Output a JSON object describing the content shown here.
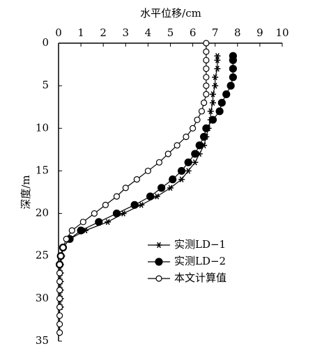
{
  "chart_data": {
    "type": "line",
    "x_label": "水平位移/cm",
    "y_label": "深度/m",
    "xlim": [
      0,
      10
    ],
    "xticks": [
      0,
      1,
      2,
      3,
      4,
      5,
      6,
      7,
      8,
      9,
      10
    ],
    "ylim": [
      0,
      35
    ],
    "yticks": [
      0,
      5,
      10,
      15,
      20,
      25,
      30,
      35
    ],
    "y_inverted": true,
    "x_axis_top": true,
    "series": [
      {
        "name": "实测LD−1",
        "color": "#000000",
        "marker": "star",
        "depth": [
          1.5,
          2,
          3,
          4,
          5,
          6,
          7,
          8,
          9,
          10,
          11,
          12,
          13,
          14,
          15,
          16,
          17,
          18,
          19,
          20,
          21,
          22,
          23,
          24,
          25,
          26,
          27,
          28,
          29,
          30,
          31
        ],
        "values": [
          7.1,
          7.1,
          7.1,
          7.0,
          7.0,
          6.9,
          6.9,
          6.8,
          6.8,
          6.7,
          6.6,
          6.5,
          6.3,
          6.1,
          5.8,
          5.5,
          5.0,
          4.4,
          3.7,
          2.9,
          2.2,
          1.2,
          0.5,
          0.2,
          0.15,
          0.1,
          0.1,
          0.1,
          0.1,
          0.1,
          0.1
        ]
      },
      {
        "name": "实测LD−2",
        "color": "#000000",
        "marker": "filled-circle",
        "depth": [
          1.5,
          2,
          3,
          4,
          5,
          6,
          7,
          8,
          9,
          10,
          11,
          12,
          13,
          14,
          15,
          16,
          17,
          18,
          19,
          20,
          21,
          22,
          23,
          24,
          25,
          26
        ],
        "values": [
          7.8,
          7.8,
          7.8,
          7.8,
          7.7,
          7.5,
          7.3,
          7.2,
          6.9,
          6.6,
          6.5,
          6.3,
          6.1,
          5.8,
          5.5,
          5.1,
          4.6,
          4.1,
          3.4,
          2.6,
          1.8,
          1.0,
          0.5,
          0.2,
          0.1,
          0.05
        ]
      },
      {
        "name": "本文计算值",
        "color": "#000000",
        "marker": "open-circle",
        "depth": [
          0,
          1,
          2,
          3,
          4,
          5,
          6,
          7,
          8,
          9,
          10,
          11,
          12,
          13,
          14,
          15,
          16,
          17,
          18,
          19,
          20,
          21,
          22,
          23,
          24,
          25,
          26,
          27,
          28,
          29,
          30,
          31,
          32,
          33,
          34
        ],
        "values": [
          6.6,
          6.6,
          6.6,
          6.6,
          6.6,
          6.6,
          6.6,
          6.5,
          6.4,
          6.2,
          6.0,
          5.7,
          5.3,
          4.9,
          4.5,
          4.0,
          3.5,
          3.0,
          2.6,
          2.1,
          1.6,
          1.1,
          0.6,
          0.35,
          0.2,
          0.1,
          0.05,
          0.05,
          0.05,
          0.05,
          0.05,
          0.05,
          0.05,
          0.05,
          0.05
        ]
      }
    ]
  }
}
